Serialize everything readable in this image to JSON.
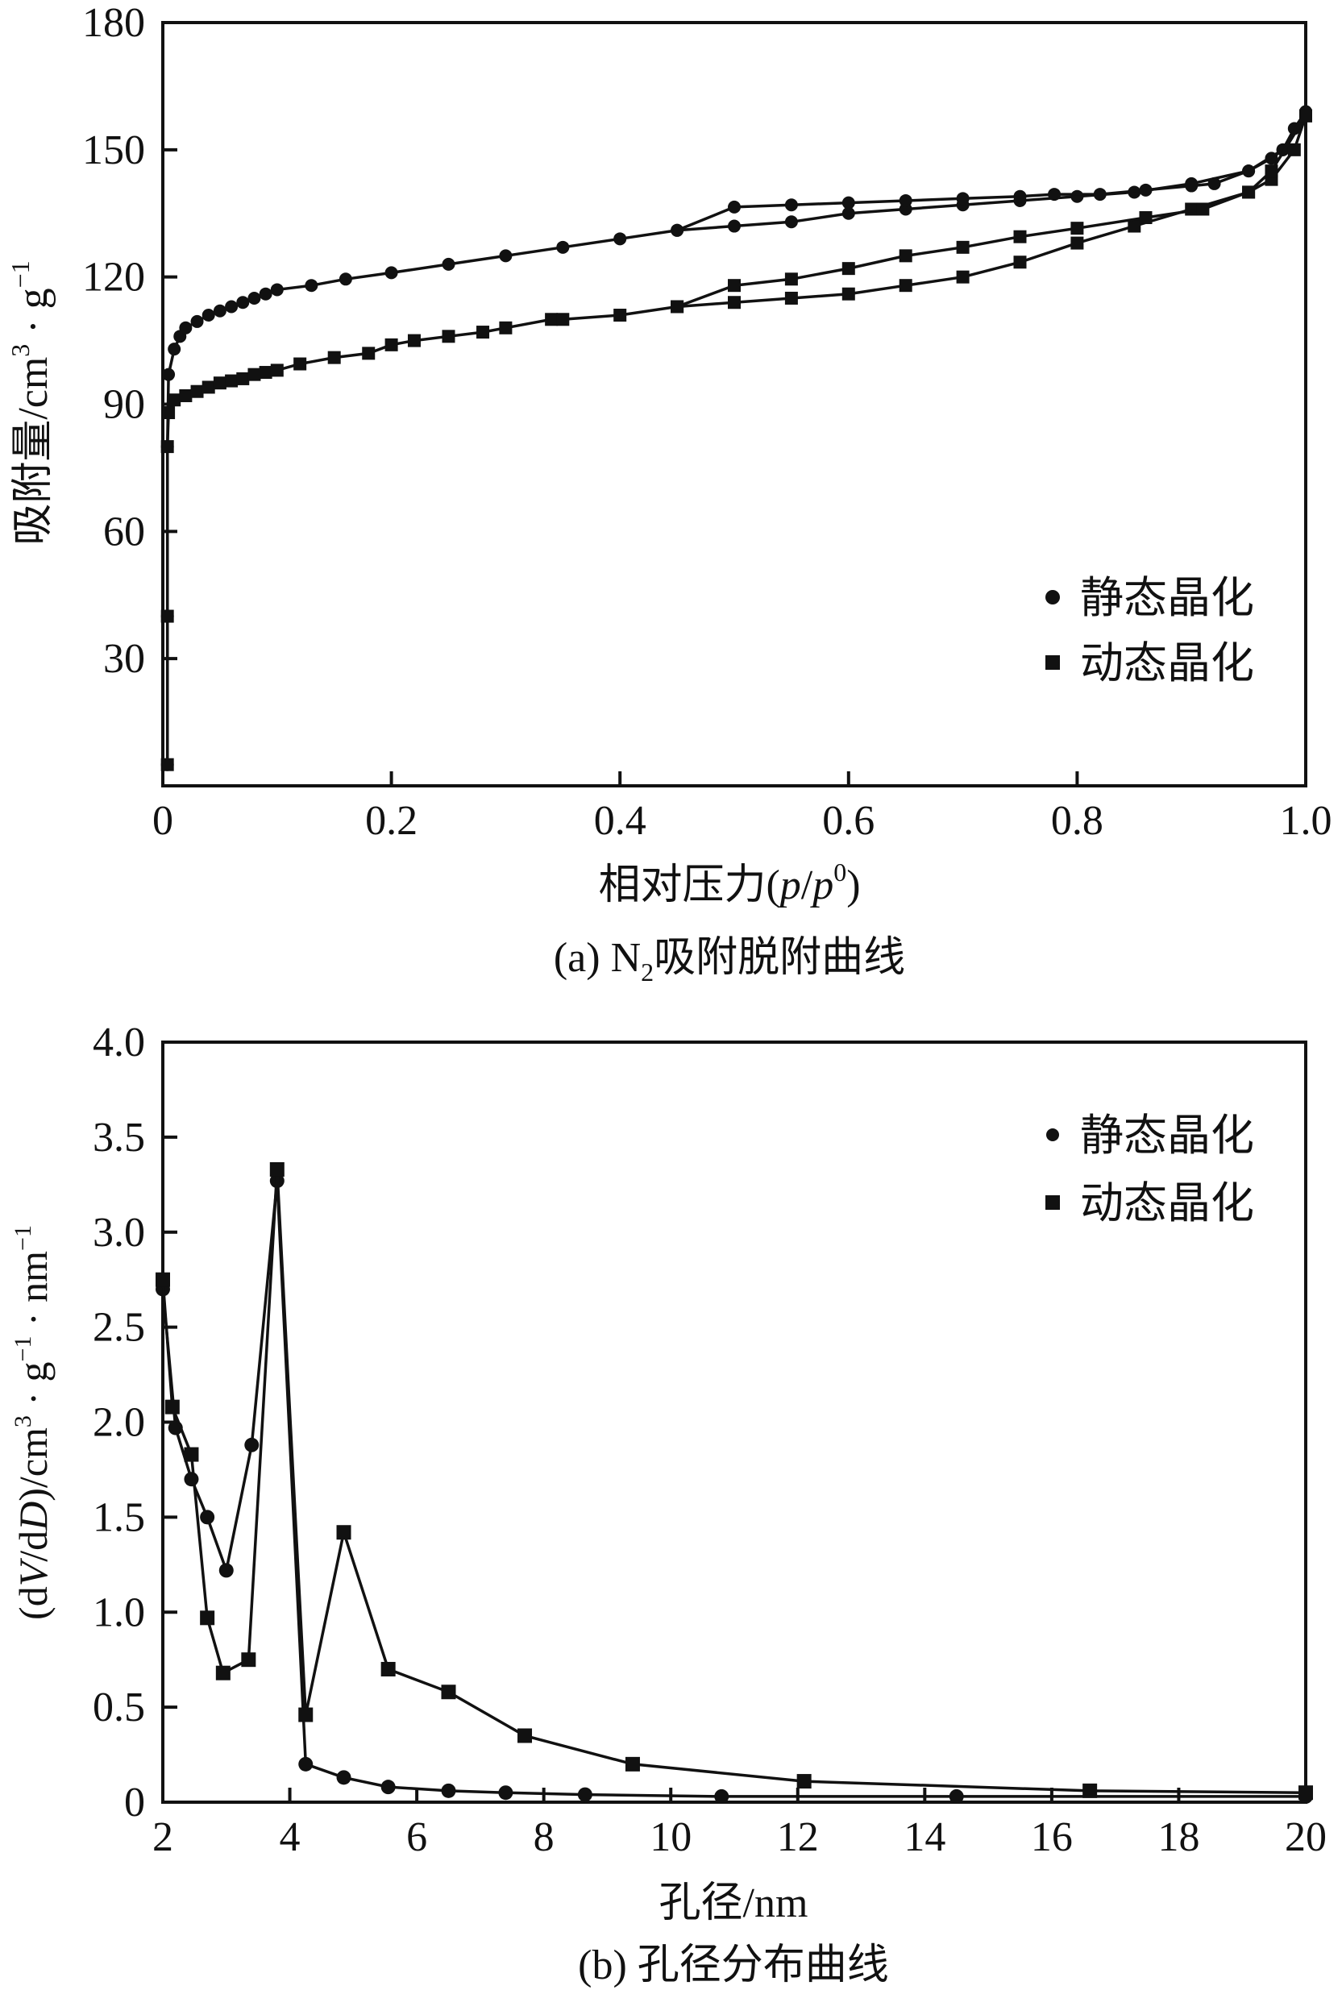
{
  "chart_data": [
    {
      "type": "line",
      "title": "(a) N2吸附脱附曲线",
      "caption_prefix": "(a) N",
      "caption_sub": "2",
      "caption_suffix": "吸附脱附曲线",
      "xlabel": "相对压力(p/p0)",
      "xlabel_main": "相对压力(",
      "xlabel_p": "p",
      "xlabel_slash": "/",
      "xlabel_p0": "p",
      "xlabel_sup": "0",
      "xlabel_close": ")",
      "ylabel": "吸附量/cm3·g-1",
      "ylabel_main": "吸附量/cm",
      "ylabel_sup3": "3",
      "ylabel_dot": " · g",
      "ylabel_sup": "−1",
      "xlim": [
        0,
        1.0
      ],
      "ylim": [
        0,
        180
      ],
      "xticks": [
        "0",
        "0.2",
        "0.4",
        "0.6",
        "0.8",
        "1.0"
      ],
      "xtick_values": [
        0,
        0.2,
        0.4,
        0.6,
        0.8,
        1.0
      ],
      "yticks": [
        "30",
        "60",
        "90",
        "120",
        "150",
        "180"
      ],
      "ytick_values": [
        30,
        60,
        90,
        120,
        150,
        180
      ],
      "legend_position": "right",
      "series": [
        {
          "name": "静态晶化",
          "marker": "circle",
          "branch": "adsorption",
          "x": [
            0.004,
            0.004,
            0.004,
            0.005,
            0.01,
            0.015,
            0.02,
            0.03,
            0.04,
            0.05,
            0.06,
            0.07,
            0.08,
            0.09,
            0.1,
            0.13,
            0.16,
            0.2,
            0.25,
            0.3,
            0.35,
            0.4,
            0.45,
            0.5,
            0.55,
            0.6,
            0.65,
            0.7,
            0.75,
            0.8,
            0.85,
            0.9,
            0.95,
            0.97,
            0.98,
            0.99,
            1.0
          ],
          "y": [
            5,
            40,
            80,
            97,
            103,
            106,
            108,
            109.5,
            111,
            112,
            113,
            114,
            115,
            116,
            117,
            118,
            119.5,
            121,
            123,
            125,
            127,
            129,
            131,
            132,
            133,
            135,
            136,
            137,
            138,
            139,
            140,
            142,
            145,
            148,
            150,
            155,
            159
          ]
        },
        {
          "name": "静态晶化",
          "marker": "circle",
          "branch": "desorption",
          "x": [
            1.0,
            0.98,
            0.95,
            0.92,
            0.9,
            0.86,
            0.82,
            0.78,
            0.75,
            0.7,
            0.65,
            0.6,
            0.55,
            0.5,
            0.45
          ],
          "y": [
            159,
            150,
            145,
            142,
            141.5,
            140.5,
            139.5,
            139.5,
            139,
            138.5,
            138,
            137.5,
            137,
            136.5,
            131
          ]
        },
        {
          "name": "动态晶化",
          "marker": "square",
          "branch": "adsorption",
          "x": [
            0.004,
            0.004,
            0.004,
            0.005,
            0.01,
            0.02,
            0.03,
            0.04,
            0.05,
            0.06,
            0.07,
            0.08,
            0.09,
            0.1,
            0.12,
            0.15,
            0.18,
            0.2,
            0.22,
            0.25,
            0.28,
            0.3,
            0.34,
            0.35,
            0.4,
            0.45,
            0.5,
            0.55,
            0.6,
            0.65,
            0.7,
            0.75,
            0.8,
            0.85,
            0.9,
            0.95,
            0.97,
            0.99,
            1.0
          ],
          "y": [
            5,
            40,
            80,
            88,
            91,
            92,
            93,
            94,
            95,
            95.5,
            96,
            97,
            97.5,
            98,
            99.5,
            101,
            102,
            104,
            105,
            106,
            107,
            108,
            110,
            110,
            111,
            113,
            114,
            115,
            116,
            118,
            120,
            123.5,
            128,
            132,
            136,
            140,
            143,
            150,
            158
          ]
        },
        {
          "name": "动态晶化",
          "marker": "square",
          "branch": "desorption",
          "x": [
            1.0,
            0.97,
            0.95,
            0.91,
            0.86,
            0.8,
            0.75,
            0.7,
            0.65,
            0.6,
            0.55,
            0.5,
            0.45
          ],
          "y": [
            158,
            145,
            140,
            136,
            134,
            131.5,
            129.5,
            127,
            125,
            122,
            119.5,
            118,
            113
          ]
        }
      ],
      "legend": [
        "静态晶化",
        "动态晶化"
      ]
    },
    {
      "type": "line",
      "title": "(b) 孔径分布曲线",
      "xlabel": "孔径/nm",
      "ylabel": "(dV/dD)/cm3·g-1·nm-1",
      "ylabel_a": "(d",
      "ylabel_V": "V",
      "ylabel_b": "/d",
      "ylabel_D": "D",
      "ylabel_c": ")/cm",
      "ylabel_sup3": "3",
      "ylabel_d": " · g",
      "ylabel_sup1": "−1",
      "ylabel_e": " · nm",
      "ylabel_sup2": "−1",
      "xlim": [
        2,
        20
      ],
      "ylim": [
        0,
        4.0
      ],
      "xticks": [
        "2",
        "4",
        "6",
        "8",
        "10",
        "12",
        "14",
        "16",
        "18",
        "20"
      ],
      "xtick_values": [
        2,
        4,
        6,
        8,
        10,
        12,
        14,
        16,
        18,
        20
      ],
      "yticks": [
        "0",
        "0.5",
        "1.0",
        "1.5",
        "2.0",
        "2.5",
        "3.0",
        "3.5",
        "4.0"
      ],
      "ytick_values": [
        0,
        0.5,
        1.0,
        1.5,
        2.0,
        2.5,
        3.0,
        3.5,
        4.0
      ],
      "legend_position": "top-right",
      "series": [
        {
          "name": "静态晶化",
          "marker": "circle",
          "x": [
            2.0,
            2.2,
            2.45,
            2.7,
            3.0,
            3.4,
            3.8,
            4.25,
            4.85,
            5.55,
            6.5,
            7.4,
            8.65,
            10.8,
            14.5,
            20
          ],
          "y": [
            2.7,
            1.97,
            1.7,
            1.5,
            1.22,
            1.88,
            3.27,
            0.2,
            0.13,
            0.08,
            0.06,
            0.05,
            0.04,
            0.03,
            0.03,
            0.03
          ]
        },
        {
          "name": "动态晶化",
          "marker": "square",
          "x": [
            2.0,
            2.15,
            2.45,
            2.7,
            2.95,
            3.35,
            3.8,
            4.25,
            4.85,
            5.55,
            6.5,
            7.7,
            9.4,
            12.1,
            16.6,
            20
          ],
          "y": [
            2.75,
            2.08,
            1.83,
            0.97,
            0.68,
            0.75,
            3.33,
            0.46,
            1.42,
            0.7,
            0.58,
            0.35,
            0.2,
            0.11,
            0.06,
            0.05
          ]
        }
      ],
      "legend": [
        "静态晶化",
        "动态晶化"
      ]
    }
  ]
}
